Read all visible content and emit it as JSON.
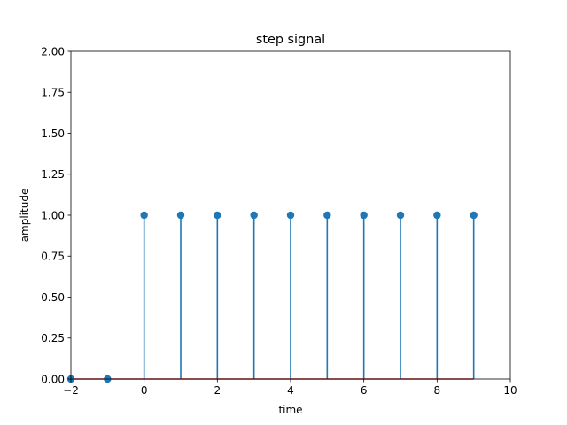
{
  "chart_data": {
    "type": "stem",
    "title": "step signal",
    "xlabel": "time",
    "ylabel": "amplitude",
    "xlim": [
      -2,
      10
    ],
    "ylim": [
      0,
      2
    ],
    "xticks": [
      -2,
      0,
      2,
      4,
      6,
      8,
      10
    ],
    "xtick_labels": [
      "−2",
      "0",
      "2",
      "4",
      "6",
      "8",
      "10"
    ],
    "yticks": [
      0,
      0.25,
      0.5,
      0.75,
      1.0,
      1.25,
      1.5,
      1.75,
      2.0
    ],
    "ytick_labels": [
      "0.00",
      "0.25",
      "0.50",
      "0.75",
      "1.00",
      "1.25",
      "1.50",
      "1.75",
      "2.00"
    ],
    "grid": false,
    "x": [
      -2,
      -1,
      0,
      1,
      2,
      3,
      4,
      5,
      6,
      7,
      8,
      9
    ],
    "y": [
      0,
      0,
      1,
      1,
      1,
      1,
      1,
      1,
      1,
      1,
      1,
      1
    ],
    "baseline": 0,
    "colors": {
      "stem": "#1f77b4",
      "marker": "#1f77b4",
      "baseline": "#d62728"
    }
  }
}
